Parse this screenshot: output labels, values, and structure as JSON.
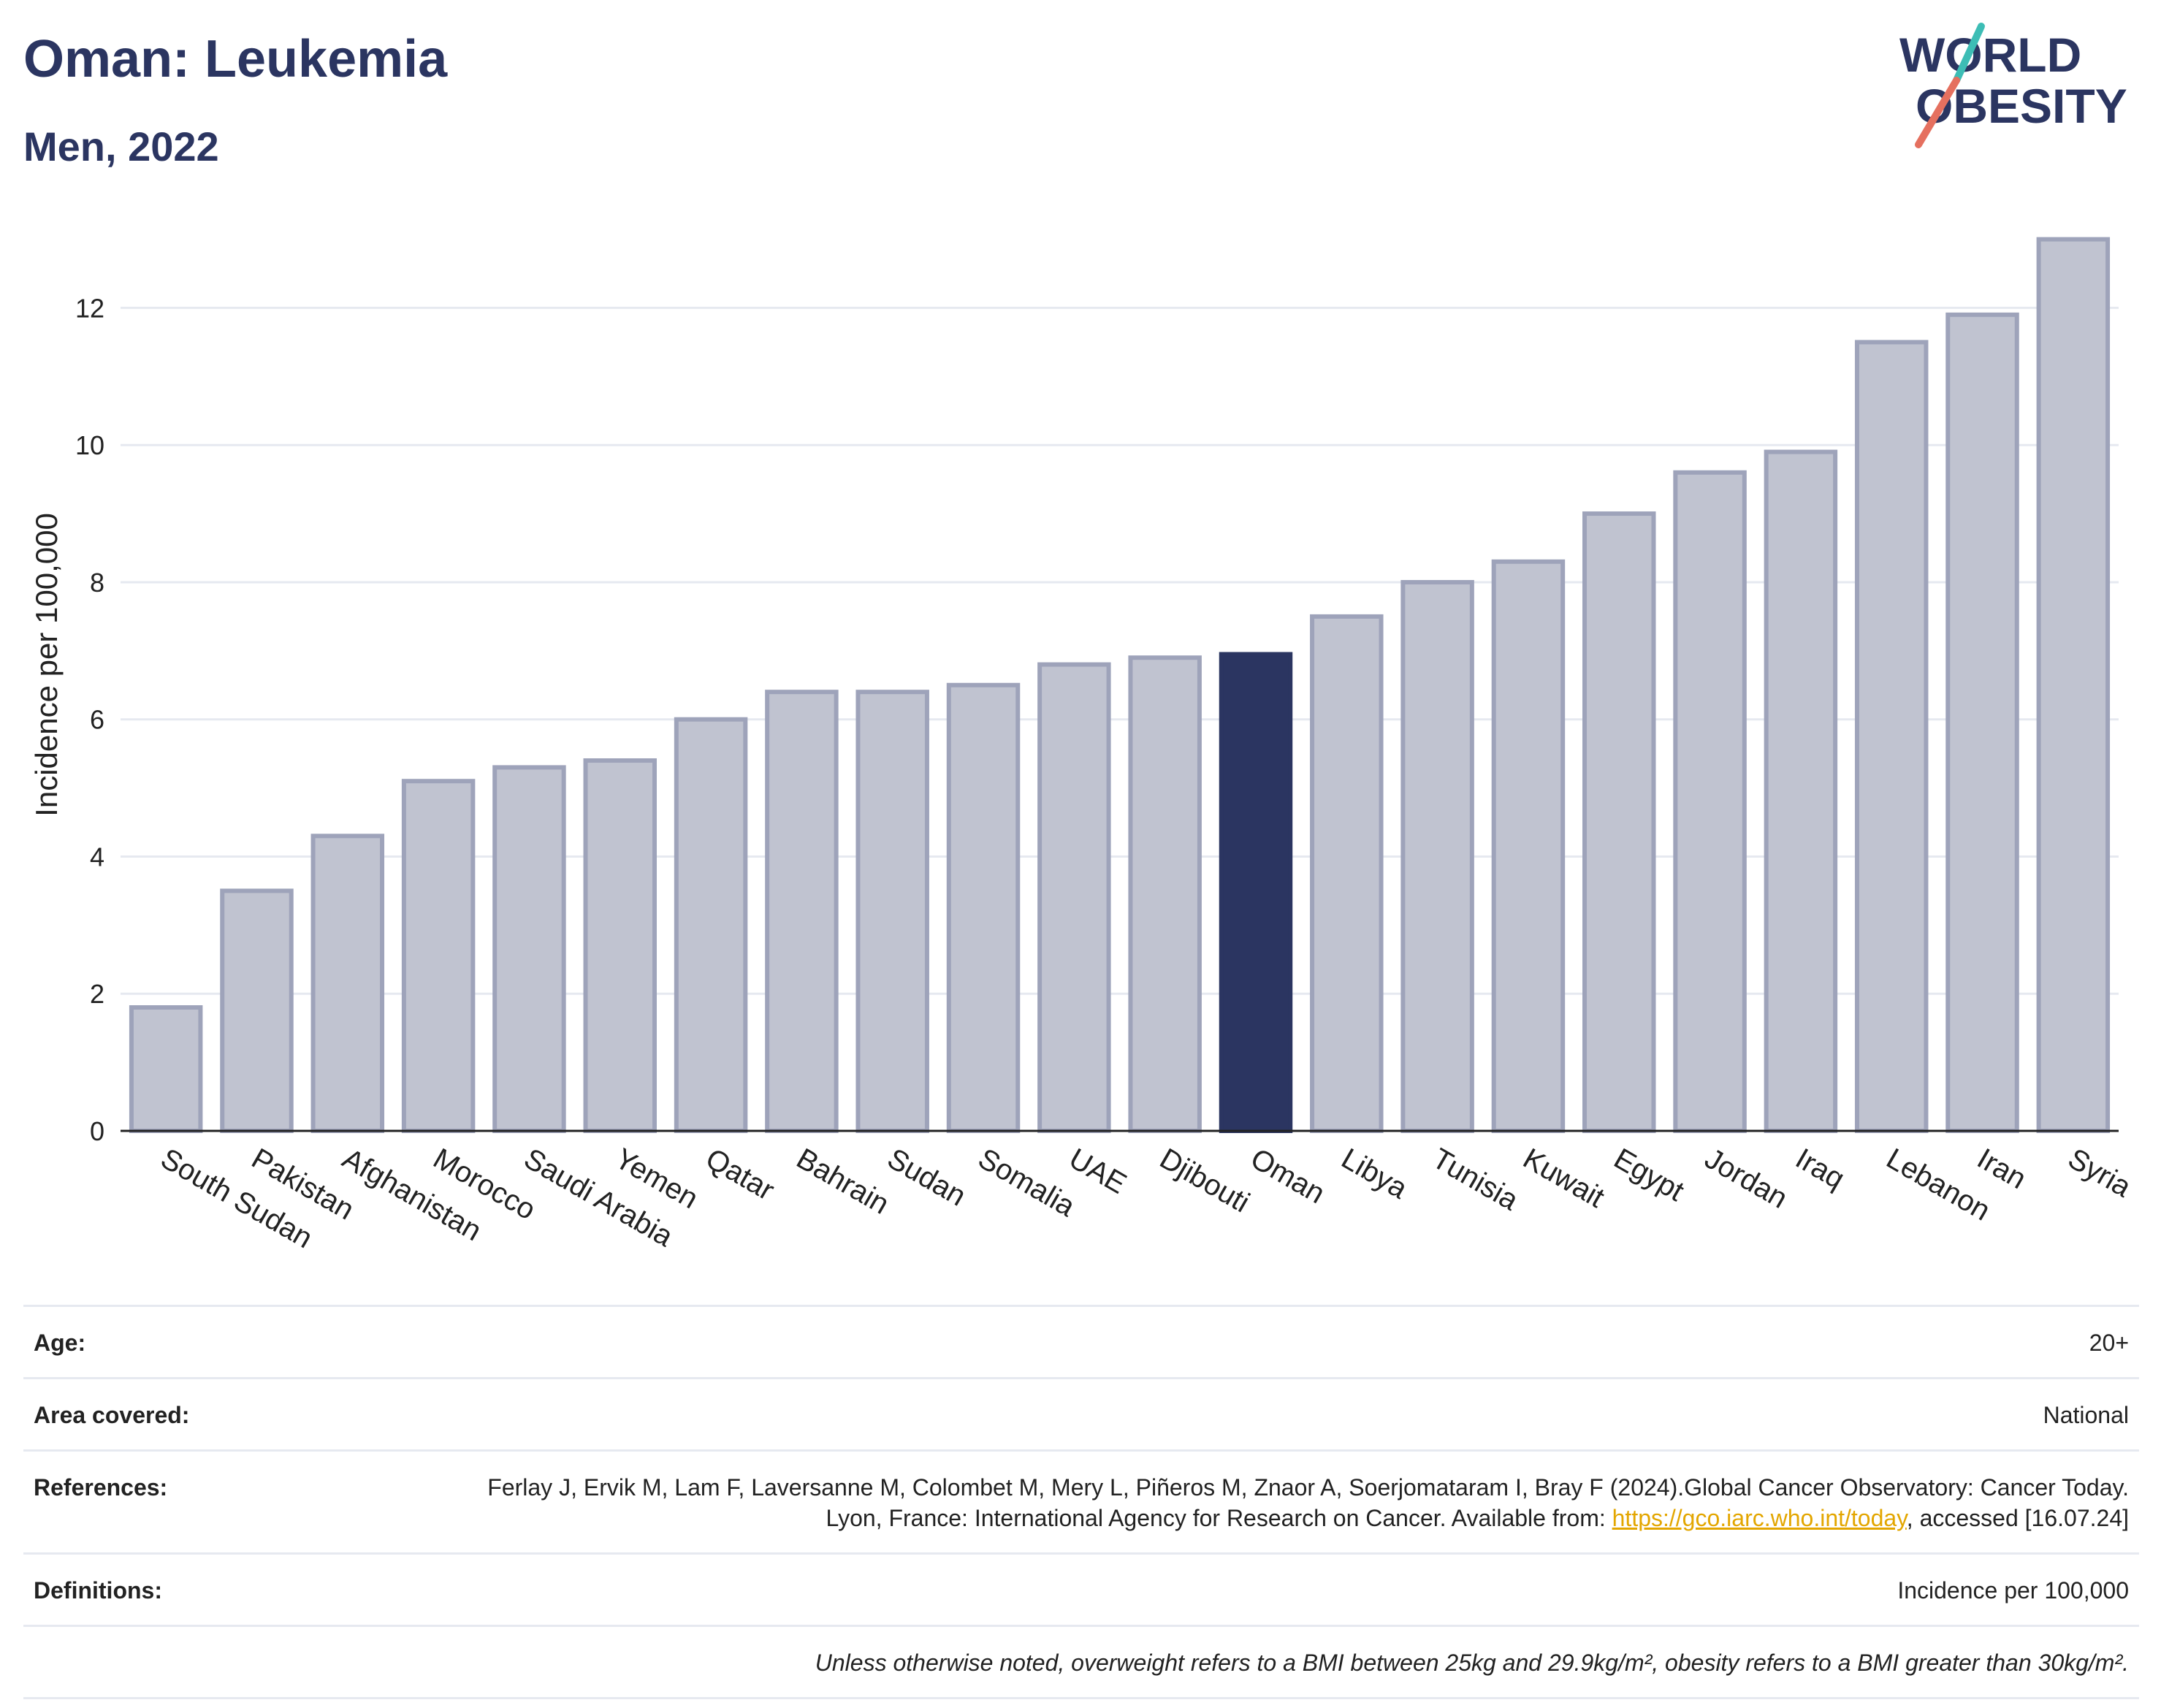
{
  "header": {
    "title": "Oman: Leukemia",
    "subtitle": "Men, 2022"
  },
  "logo": {
    "line1": "WORLD",
    "line2": "OBESITY",
    "accent_colors": [
      "#3dbdb5",
      "#e5705f"
    ],
    "text_color": "#2b3561"
  },
  "chart_data": {
    "type": "bar",
    "categories": [
      "South Sudan",
      "Pakistan",
      "Afghanistan",
      "Morocco",
      "Saudi Arabia",
      "Yemen",
      "Qatar",
      "Bahrain",
      "Sudan",
      "Somalia",
      "UAE",
      "Djibouti",
      "Oman",
      "Libya",
      "Tunisia",
      "Kuwait",
      "Egypt",
      "Jordan",
      "Iraq",
      "Lebanon",
      "Iran",
      "Syria"
    ],
    "values": [
      1.8,
      3.5,
      4.3,
      5.1,
      5.3,
      5.4,
      6.0,
      6.4,
      6.4,
      6.5,
      6.8,
      6.9,
      6.95,
      7.5,
      8.0,
      8.3,
      9.0,
      9.6,
      9.9,
      11.5,
      11.9,
      13.0
    ],
    "highlight": "Oman",
    "ylabel": "Incidence per 100,000",
    "xlabel": "",
    "ylim": [
      0,
      13.4
    ],
    "yticks": [
      0,
      2,
      4,
      6,
      8,
      10,
      12
    ],
    "grid": true,
    "colors": {
      "bar": "#c0c3d0",
      "bar_border": "#9ea3ba",
      "highlight": "#2b3561",
      "grid": "#e6e9f0",
      "axis": "#222222"
    }
  },
  "info": {
    "age_label": "Age:",
    "age_value": "20+",
    "area_label": "Area covered:",
    "area_value": "National",
    "references_label": "References:",
    "references_text": "Ferlay J, Ervik M, Lam F, Laversanne M, Colombet M, Mery L, Piñeros M, Znaor A, Soerjomataram I, Bray F (2024).Global Cancer Observatory: Cancer Today. Lyon, France: International Agency for Research on Cancer. Available from:",
    "references_link": "https://gco.iarc.who.int/today",
    "references_tail": ", accessed [16.07.24]",
    "definitions_label": "Definitions:",
    "definitions_value": "Incidence per 100,000",
    "note": "Unless otherwise noted, overweight refers to a BMI between 25kg and 29.9kg/m², obesity refers to a BMI greater than 30kg/m²."
  }
}
